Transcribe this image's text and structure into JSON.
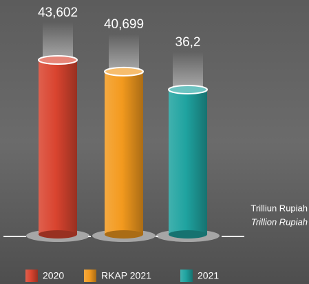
{
  "chart_data": {
    "type": "bar",
    "categories": [
      "2020",
      "RKAP 2021",
      "2021"
    ],
    "series": [
      {
        "name": "2020",
        "color": "#d9442f"
      },
      {
        "name": "RKAP 2021",
        "color": "#f39a1e"
      },
      {
        "name": "2021",
        "color": "#1fa3a0"
      }
    ],
    "values": [
      43.602,
      40.699,
      36.2
    ],
    "value_labels": [
      "43,602",
      "40,699",
      "36,2"
    ],
    "unit_label": "Trilliun Rupiah",
    "unit_label_en": "Trillion Rupiah"
  }
}
